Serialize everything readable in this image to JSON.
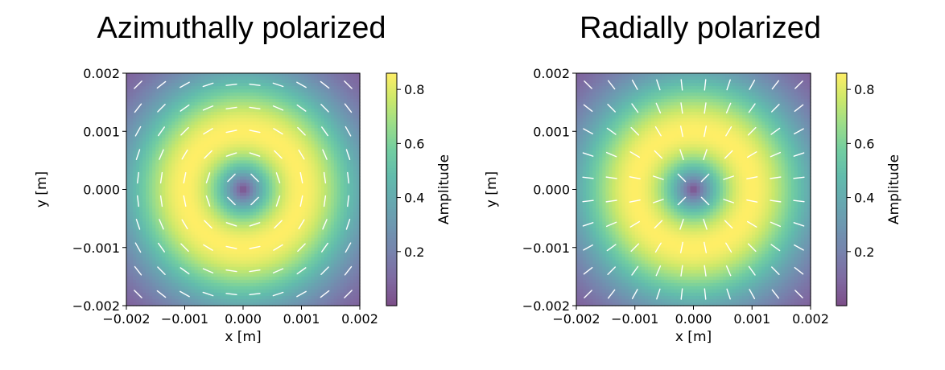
{
  "figure_titles": [
    "Azimuthally polarized",
    "Radially polarized"
  ],
  "chart_data": [
    {
      "type": "heatmap",
      "title": "Azimuthally polarized",
      "xlabel": "x [m]",
      "ylabel": "y [m]",
      "xlim": [
        -0.002,
        0.002
      ],
      "ylim": [
        -0.002,
        0.002
      ],
      "x_ticks": [
        "−0.002",
        "−0.001",
        "0.000",
        "0.001",
        "0.002"
      ],
      "y_ticks": [
        "−0.002",
        "−0.001",
        "0.000",
        "0.001",
        "0.002"
      ],
      "colorbar": {
        "label": "Amplitude",
        "range": [
          0.0,
          0.86
        ],
        "ticks": [
          "0.2",
          "0.4",
          "0.6",
          "0.8"
        ],
        "colormap": "viridis"
      },
      "field": {
        "profile": "donut",
        "peak_amplitude": 0.86,
        "peak_radius": 0.001,
        "vector_field": "azimuthal",
        "vector_color": "#ffffff"
      }
    },
    {
      "type": "heatmap",
      "title": "Radially polarized",
      "xlabel": "x [m]",
      "ylabel": "y [m]",
      "xlim": [
        -0.002,
        0.002
      ],
      "ylim": [
        -0.002,
        0.002
      ],
      "x_ticks": [
        "−0.002",
        "−0.001",
        "0.000",
        "0.001",
        "0.002"
      ],
      "y_ticks": [
        "−0.002",
        "−0.001",
        "0.000",
        "0.001",
        "0.002"
      ],
      "colorbar": {
        "label": "Amplitude",
        "range": [
          0.0,
          0.86
        ],
        "ticks": [
          "0.2",
          "0.4",
          "0.6",
          "0.8"
        ],
        "colormap": "viridis"
      },
      "field": {
        "profile": "donut",
        "peak_amplitude": 0.86,
        "peak_radius": 0.001,
        "vector_field": "radial",
        "vector_color": "#ffffff"
      }
    }
  ]
}
